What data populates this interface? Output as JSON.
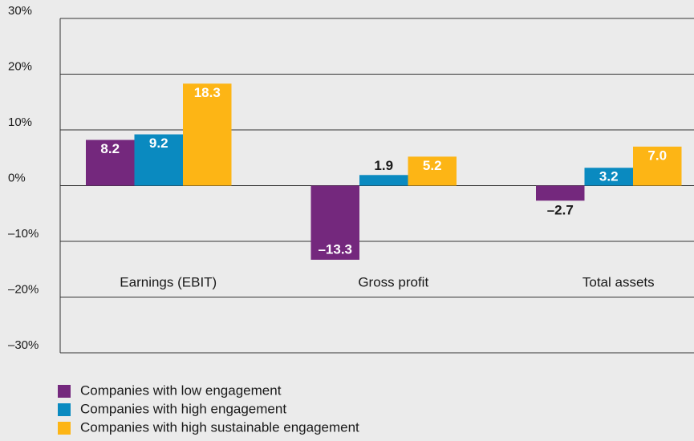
{
  "chart_data": {
    "type": "bar",
    "categories": [
      "Earnings (EBIT)",
      "Gross profit",
      "Total assets"
    ],
    "series": [
      {
        "name": "Companies with low engagement",
        "color": "#74287d",
        "values": [
          8.2,
          -13.3,
          -2.7
        ],
        "value_labels": [
          "8.2",
          "–13.3",
          "–2.7"
        ]
      },
      {
        "name": "Companies with high engagement",
        "color": "#0a8ac0",
        "values": [
          9.2,
          1.9,
          3.2
        ],
        "value_labels": [
          "9.2",
          "1.9",
          "3.2"
        ]
      },
      {
        "name": "Companies with high sustainable engagement",
        "color": "#fdb515",
        "values": [
          18.3,
          5.2,
          7.0
        ],
        "value_labels": [
          "18.3",
          "5.2",
          "7.0"
        ]
      }
    ],
    "ylim": [
      -30,
      30
    ],
    "yticks": [
      {
        "value": -30,
        "label": "–30%"
      },
      {
        "value": -20,
        "label": "–20%"
      },
      {
        "value": -10,
        "label": "–10%"
      },
      {
        "value": 0,
        "label": "0%"
      },
      {
        "value": 10,
        "label": "10%"
      },
      {
        "value": 20,
        "label": "20%"
      },
      {
        "value": 30,
        "label": "30%"
      }
    ],
    "grid": true
  }
}
